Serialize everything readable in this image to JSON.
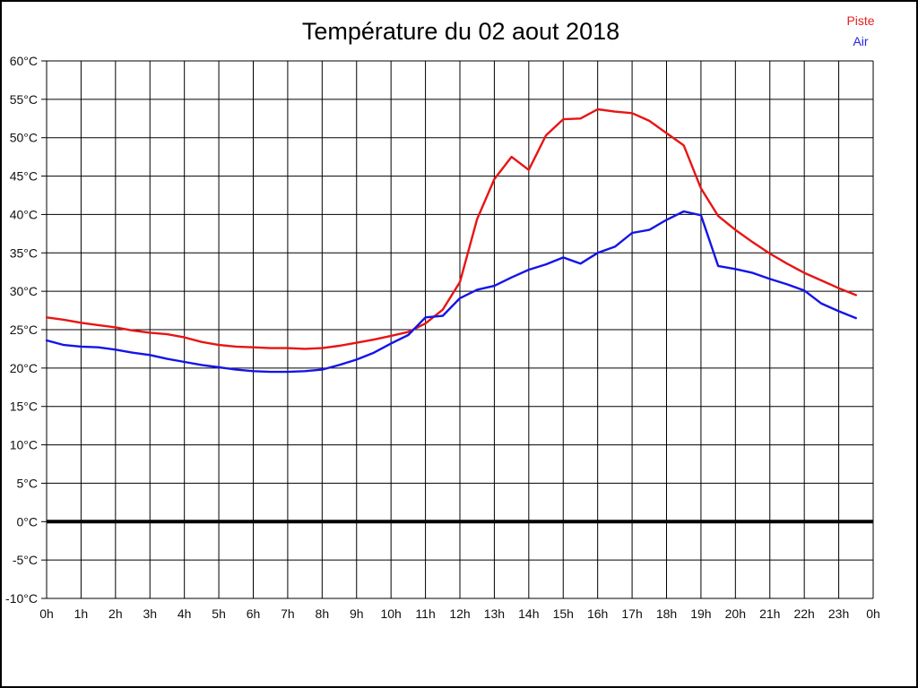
{
  "page": {
    "background": "#ffffff",
    "border_color": "#000000"
  },
  "header": {
    "title": "Température du 02 aout 2018"
  },
  "legend": {
    "items": [
      {
        "label": "Piste",
        "color": "#e32020"
      },
      {
        "label": "Air",
        "color": "#2424e0"
      }
    ]
  },
  "chart_data": {
    "type": "line",
    "title": "Température du 02 aout 2018",
    "xlabel": "",
    "ylabel": "",
    "xlim": [
      0,
      24
    ],
    "ylim": [
      -10,
      60
    ],
    "y_step": 5,
    "grid": "on",
    "grid_color": "#000000",
    "zero_line_value": 0,
    "zero_line_color": "#000000",
    "legend_position": "top-right",
    "x_ticks": [
      "0h",
      "1h",
      "2h",
      "3h",
      "4h",
      "5h",
      "6h",
      "7h",
      "8h",
      "9h",
      "10h",
      "11h",
      "12h",
      "13h",
      "14h",
      "15h",
      "16h",
      "17h",
      "18h",
      "19h",
      "20h",
      "21h",
      "22h",
      "23h",
      "0h"
    ],
    "y_ticks": [
      "60°C",
      "55°C",
      "50°C",
      "45°C",
      "40°C",
      "35°C",
      "30°C",
      "25°C",
      "20°C",
      "15°C",
      "10°C",
      "5°C",
      "0°C",
      "-5°C",
      "-10°C"
    ],
    "x_hours": [
      0,
      0.5,
      1,
      1.5,
      2,
      2.5,
      3,
      3.5,
      4,
      4.5,
      5,
      5.5,
      6,
      6.5,
      7,
      7.5,
      8,
      8.5,
      9,
      9.5,
      10,
      10.5,
      11,
      11.5,
      12,
      12.5,
      13,
      13.5,
      14,
      14.5,
      15,
      15.5,
      16,
      16.5,
      17,
      17.5,
      18,
      18.5,
      19,
      19.5,
      20,
      20.5,
      21,
      21.5,
      22,
      22.5,
      23,
      23.5
    ],
    "series": [
      {
        "name": "Piste",
        "color": "#e81414",
        "values": [
          26.6,
          26.3,
          25.9,
          25.6,
          25.3,
          24.9,
          24.6,
          24.4,
          24.0,
          23.4,
          23.0,
          22.8,
          22.7,
          22.6,
          22.6,
          22.5,
          22.6,
          22.9,
          23.3,
          23.7,
          24.2,
          24.7,
          25.8,
          27.6,
          31.2,
          39.4,
          44.6,
          47.5,
          45.8,
          50.3,
          52.4,
          52.5,
          53.7,
          53.4,
          53.2,
          52.2,
          50.6,
          49.0,
          43.4,
          39.8,
          38.0,
          36.4,
          34.9,
          33.6,
          32.4,
          31.4,
          30.4,
          29.5
        ]
      },
      {
        "name": "Air",
        "color": "#1414e8",
        "values": [
          23.6,
          23.0,
          22.8,
          22.7,
          22.4,
          22.0,
          21.7,
          21.2,
          20.8,
          20.4,
          20.1,
          19.8,
          19.6,
          19.5,
          19.5,
          19.6,
          19.8,
          20.4,
          21.1,
          22.0,
          23.2,
          24.3,
          26.6,
          26.8,
          29.1,
          30.2,
          30.7,
          31.8,
          32.8,
          33.5,
          34.4,
          33.6,
          35.0,
          35.8,
          37.6,
          38.0,
          39.3,
          40.4,
          39.9,
          33.3,
          32.9,
          32.4,
          31.6,
          30.9,
          30.1,
          28.4,
          27.4,
          26.5
        ]
      }
    ]
  }
}
